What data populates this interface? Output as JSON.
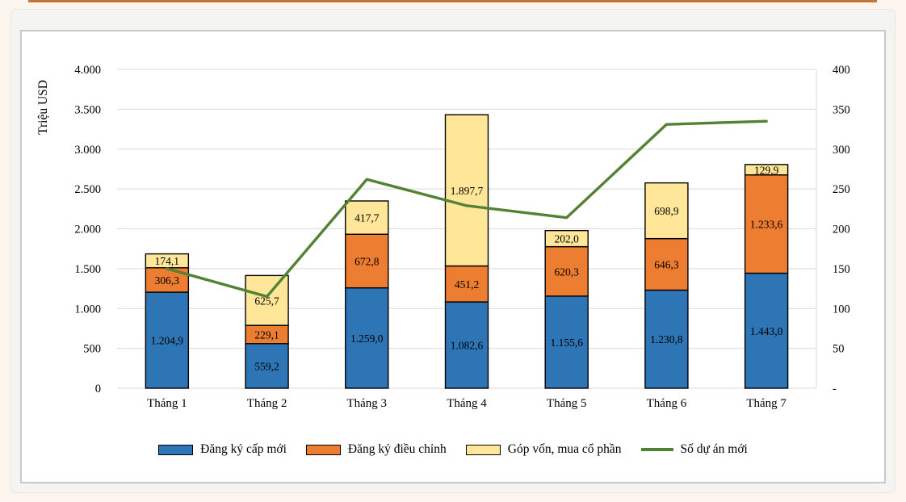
{
  "page": {
    "background": "#FBF5EE",
    "top_strip_color": "#C2763E",
    "panel_background": "#F4F4F2",
    "chart_box_background": "#FFFFFF",
    "chart_box_border": "#C9C9C9"
  },
  "chart_data": {
    "type": "bar",
    "subtype": "stacked-bar-with-line",
    "title": "",
    "ylabel_left": "Triệu USD",
    "categories": [
      "Tháng 1",
      "Tháng 2",
      "Tháng 3",
      "Tháng 4",
      "Tháng 5",
      "Tháng 6",
      "Tháng 7"
    ],
    "series": [
      {
        "name": "Đăng ký cấp mới",
        "color": "#2E75B6",
        "values": [
          1204.9,
          559.2,
          1259.0,
          1082.6,
          1155.6,
          1230.8,
          1443.0
        ],
        "labels": [
          "1.204,9",
          "559,2",
          "1.259,0",
          "1.082,6",
          "1.155,6",
          "1.230,8",
          "1.443,0"
        ]
      },
      {
        "name": "Đăng ký điều chỉnh",
        "color": "#ED7D31",
        "values": [
          306.3,
          229.1,
          672.8,
          451.2,
          620.3,
          646.3,
          1233.6
        ],
        "labels": [
          "306,3",
          "229,1",
          "672,8",
          "451,2",
          "620,3",
          "646,3",
          "1.233,6"
        ]
      },
      {
        "name": "Góp vốn, mua cổ phần",
        "color": "#FFE699",
        "values": [
          174.1,
          625.7,
          417.7,
          1897.7,
          202.0,
          698.9,
          129.9
        ],
        "labels": [
          "174,1",
          "625,7",
          "417,7",
          "1.897,7",
          "202,0",
          "698,9",
          "129,9"
        ]
      }
    ],
    "line_series": {
      "name": "Số dự án mới",
      "color": "#548235",
      "axis": "right",
      "values": [
        150,
        115,
        262,
        229,
        214,
        331,
        335
      ]
    },
    "y_left": {
      "min": 0,
      "max": 4000,
      "tick_labels_bottom_to_top": [
        "0",
        "500",
        "1.000",
        "1.500",
        "2.000",
        "2.500",
        "3.000",
        "3.500",
        "4.000"
      ]
    },
    "y_right": {
      "min": 0,
      "max": 400,
      "tick_labels_bottom_to_top": [
        "-",
        "50",
        "100",
        "150",
        "200",
        "250",
        "300",
        "350",
        "400"
      ]
    },
    "grid": "horizontal",
    "gridline_color": "#D9D9D9",
    "bar_border_color": "#000000",
    "label_color": "#000000",
    "legend_position": "bottom"
  }
}
